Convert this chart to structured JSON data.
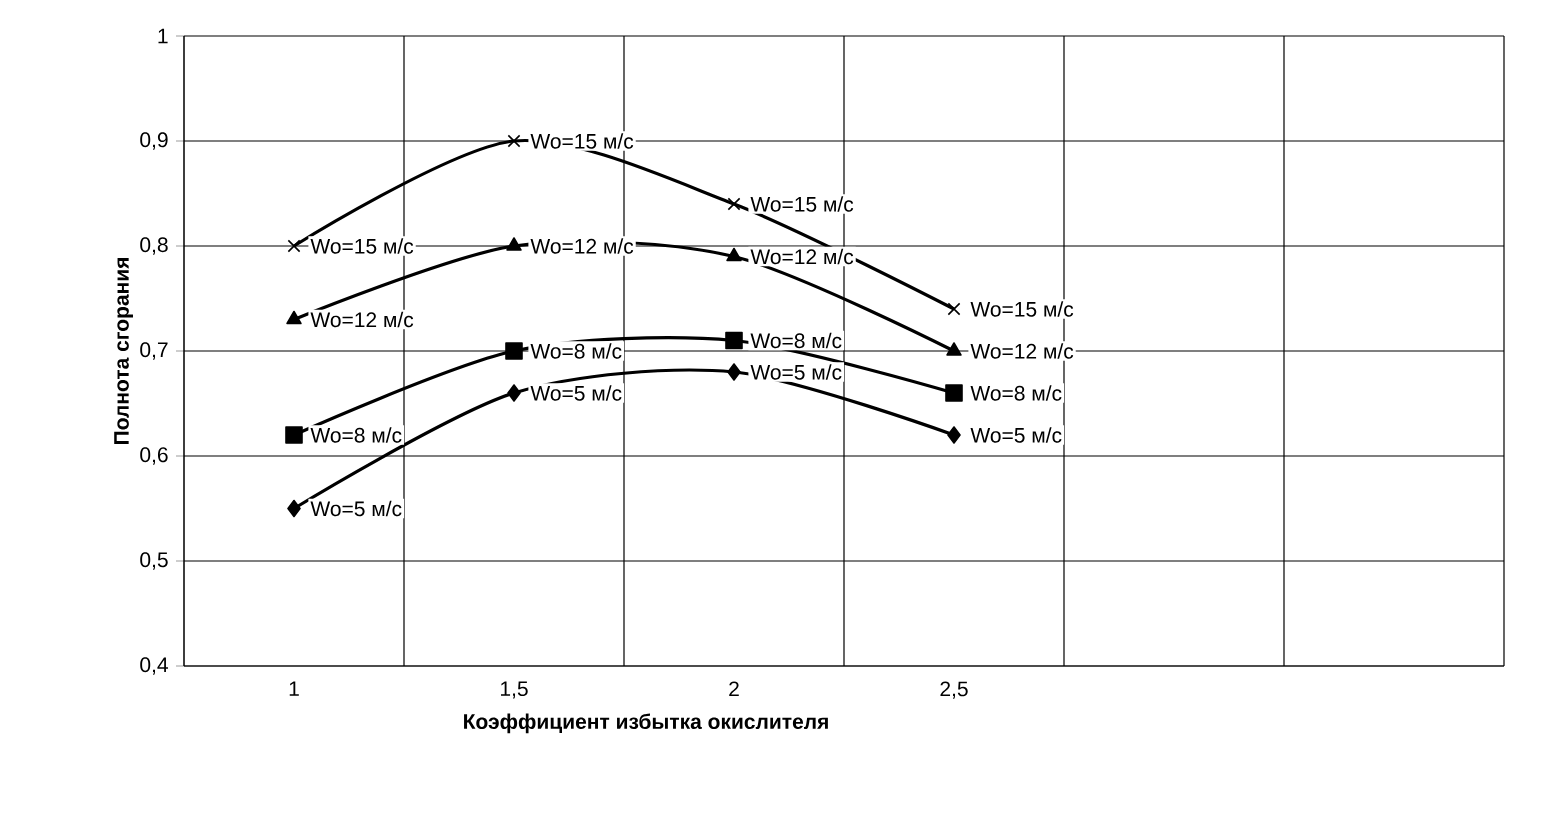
{
  "chart_data": {
    "type": "line",
    "xlabel": "Коэффициент избытка окислителя",
    "ylabel": "Полнота сгорания",
    "categories": [
      "1",
      "1,5",
      "2",
      "2,5",
      null,
      null
    ],
    "ylim": [
      0.4,
      1
    ],
    "yticks": [
      {
        "value": 0.4,
        "label": "0,4"
      },
      {
        "value": 0.5,
        "label": "0,5"
      },
      {
        "value": 0.6,
        "label": "0,6"
      },
      {
        "value": 0.7,
        "label": "0,7"
      },
      {
        "value": 0.8,
        "label": "0,8"
      },
      {
        "value": 0.9,
        "label": "0,9"
      },
      {
        "value": 1,
        "label": "1"
      }
    ],
    "grid": true,
    "line_style": "solid",
    "series": [
      {
        "name": "Wo=15 м/с",
        "color": "#000000",
        "marker": "cross",
        "values": [
          0.8,
          0.9,
          0.84,
          0.74,
          null,
          null
        ]
      },
      {
        "name": "Wo=12 м/с",
        "color": "#000000",
        "marker": "triangle",
        "values": [
          0.73,
          0.8,
          0.79,
          0.7,
          null,
          null
        ]
      },
      {
        "name": "Wo=8 м/с",
        "color": "#000000",
        "marker": "square",
        "values": [
          0.62,
          0.7,
          0.71,
          0.66,
          null,
          null
        ]
      },
      {
        "name": "Wo=5 м/с",
        "color": "#000000",
        "marker": "diamond",
        "values": [
          0.55,
          0.66,
          0.68,
          0.62,
          null,
          null
        ]
      }
    ]
  }
}
